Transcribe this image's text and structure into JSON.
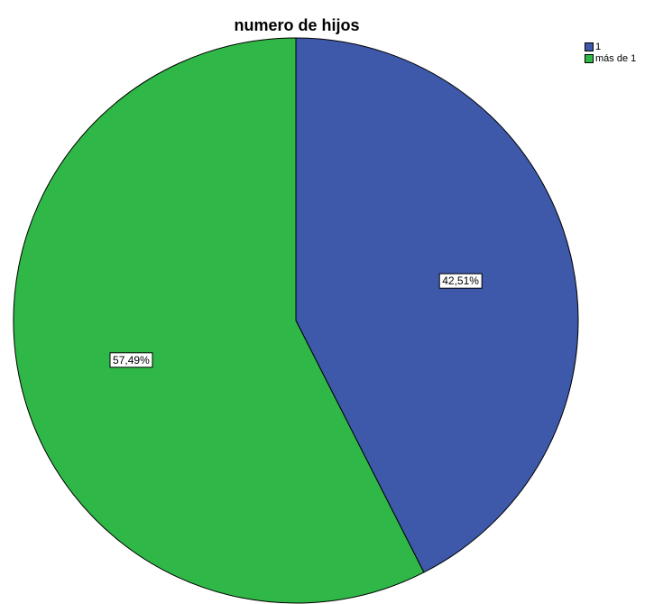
{
  "chart_data": {
    "type": "pie",
    "title": "numero de hijos",
    "categories": [
      "1",
      "más de 1"
    ],
    "values": [
      42.51,
      57.49
    ],
    "labels": [
      "42,51%",
      "57,49%"
    ],
    "colors": [
      "#3e58aa",
      "#2fb847"
    ],
    "legend_placement": "top-right",
    "start": "top",
    "direction": "clockwise"
  }
}
